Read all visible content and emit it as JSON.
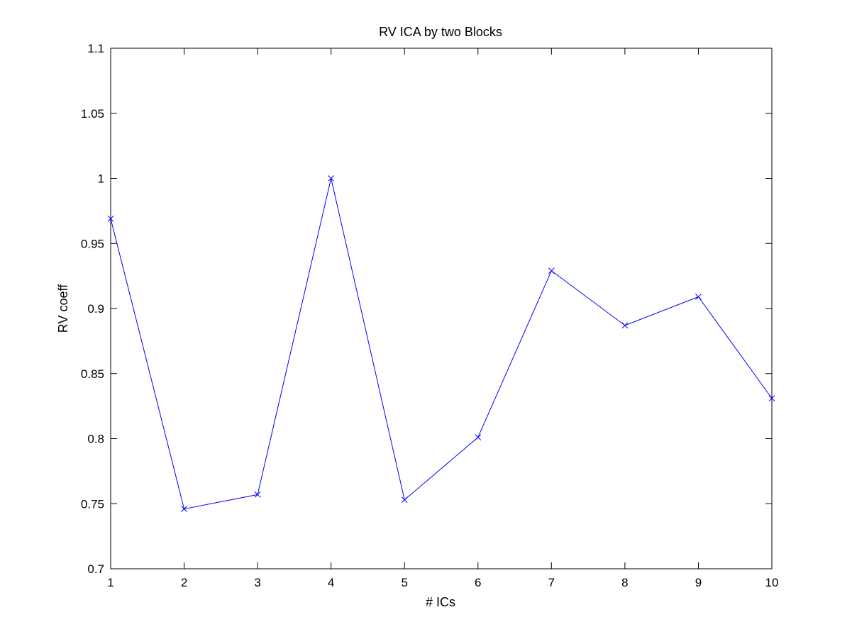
{
  "chart_data": {
    "type": "line",
    "title": "RV ICA by two Blocks",
    "xlabel": "# ICs",
    "ylabel": "RV coeff",
    "xlim": [
      1,
      10
    ],
    "ylim": [
      0.7,
      1.1
    ],
    "x_ticks": [
      "1",
      "2",
      "3",
      "4",
      "5",
      "6",
      "7",
      "8",
      "9",
      "10"
    ],
    "y_ticks": [
      "0.7",
      "0.75",
      "0.8",
      "0.85",
      "0.9",
      "0.95",
      "1",
      "1.05",
      "1.1"
    ],
    "grid": false,
    "marker": "x",
    "series": [
      {
        "color": "#0000ff",
        "x": [
          1,
          2,
          3,
          4,
          5,
          6,
          7,
          8,
          9,
          10
        ],
        "values": [
          0.969,
          0.746,
          0.757,
          1.0,
          0.753,
          0.801,
          0.929,
          0.887,
          0.909,
          0.831
        ]
      }
    ]
  }
}
